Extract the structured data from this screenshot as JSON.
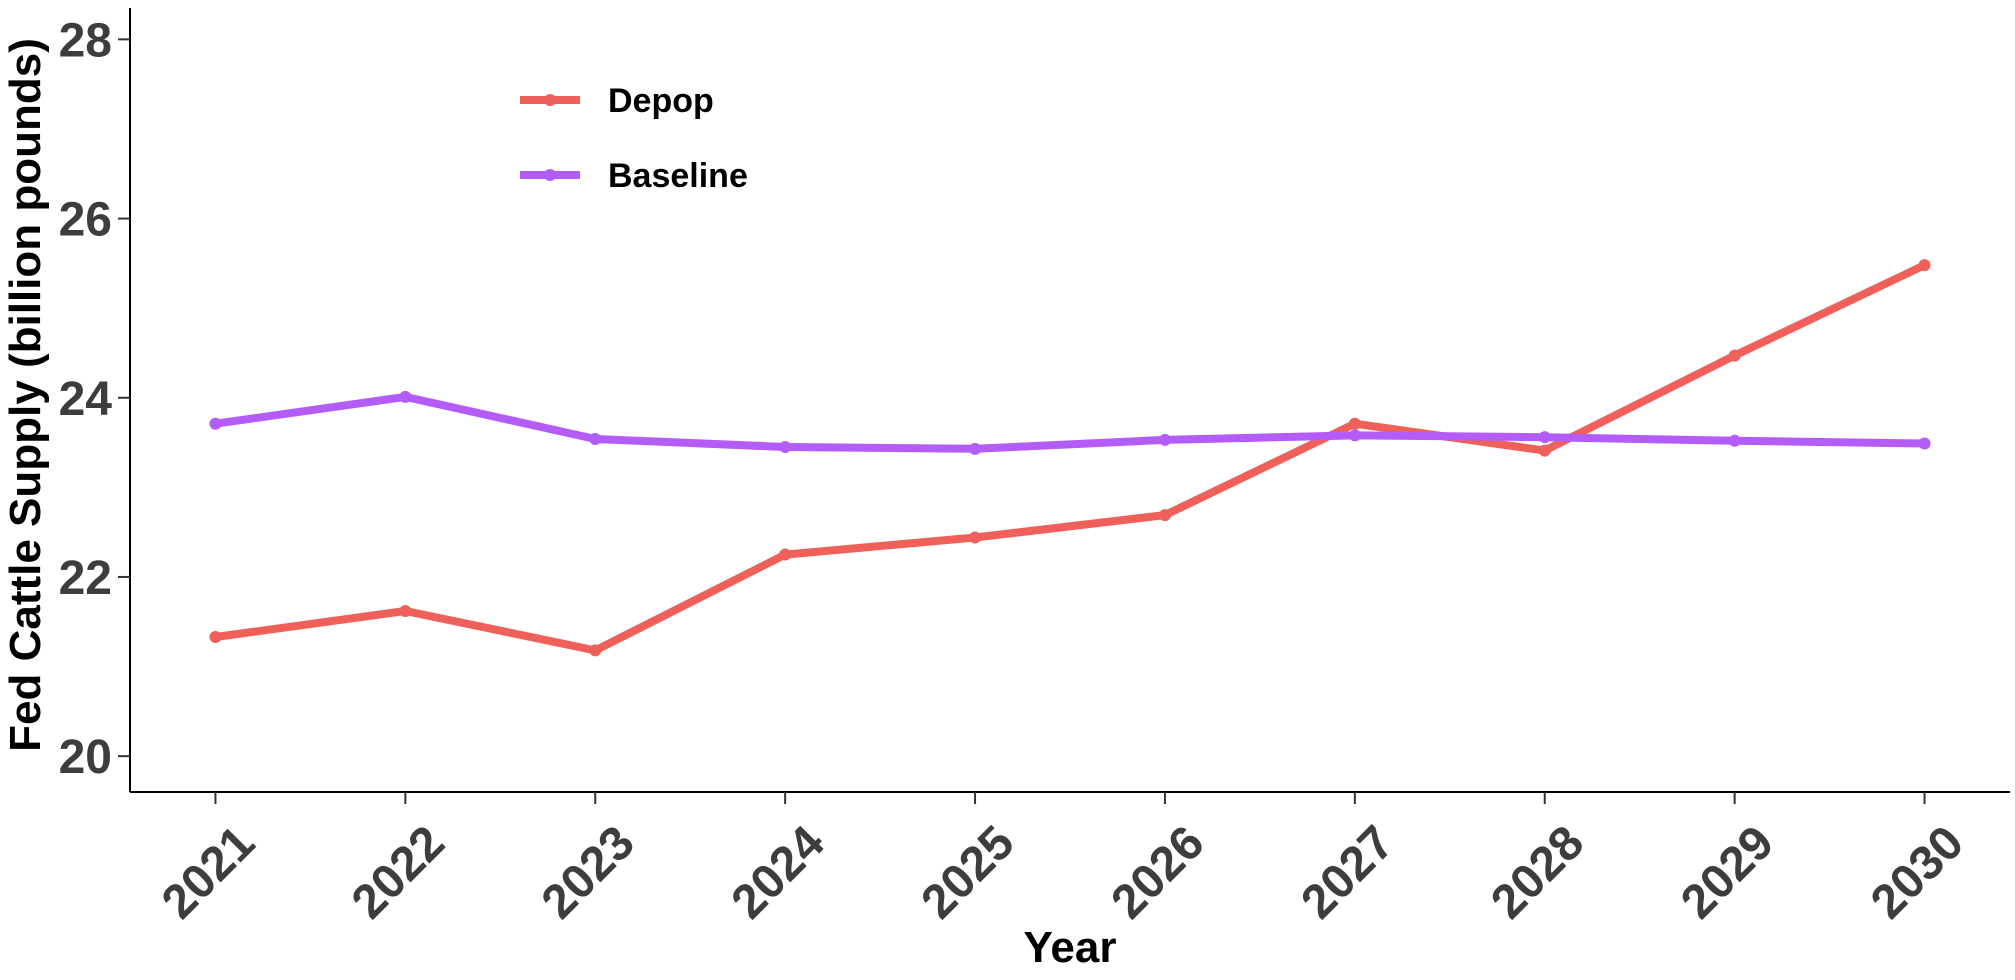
{
  "chart_data": {
    "type": "line",
    "title": "",
    "xlabel": "Year",
    "ylabel": "Fed Cattle Supply (billion pounds)",
    "x": [
      2021,
      2022,
      2023,
      2024,
      2025,
      2026,
      2027,
      2028,
      2029,
      2030
    ],
    "x_tick_labels": [
      "2021",
      "2022",
      "2023",
      "2024",
      "2025",
      "2026",
      "2027",
      "2028",
      "2029",
      "2030"
    ],
    "y_ticks": [
      20,
      22,
      24,
      26,
      28
    ],
    "y_tick_labels": [
      "20",
      "22",
      "24",
      "26",
      "28"
    ],
    "ylim": [
      19.6,
      28.35
    ],
    "xlim": [
      2020.55,
      2030.45
    ],
    "grid": false,
    "legend_position": "top-left",
    "series": [
      {
        "name": "Depop",
        "color": "#f0605a",
        "values": [
          21.33,
          21.62,
          21.18,
          22.25,
          22.44,
          22.69,
          23.71,
          23.41,
          24.47,
          25.48
        ]
      },
      {
        "name": "Baseline",
        "color": "#b35cf7",
        "values": [
          23.71,
          24.01,
          23.54,
          23.45,
          23.43,
          23.53,
          23.58,
          23.56,
          23.52,
          23.49
        ]
      }
    ]
  }
}
